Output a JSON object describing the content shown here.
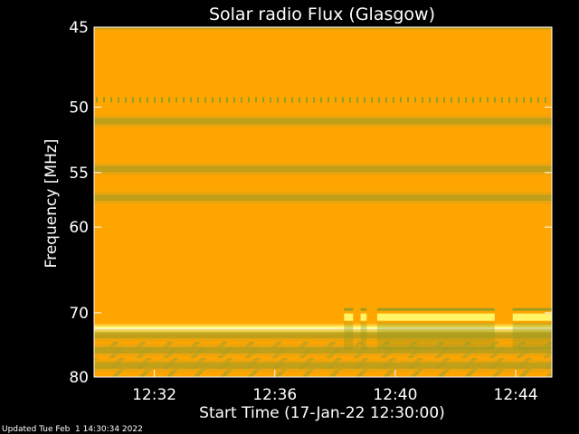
{
  "chart_data": {
    "type": "heatmap",
    "title": "Solar radio Flux (Glasgow)",
    "ylabel_text": "Frequency ",
    "ylabel_unit": "[MHz]",
    "xlabel": "Start Time (17-Jan-22 12:30:00)",
    "footer": "Updated Tue Feb  1 14:30:34 2022",
    "xlim_minutes": [
      0,
      15.2
    ],
    "ylim_mhz": [
      45,
      80
    ],
    "x_ticks": [
      {
        "label": "12:32",
        "minutes": 2
      },
      {
        "label": "12:36",
        "minutes": 6
      },
      {
        "label": "12:40",
        "minutes": 10
      },
      {
        "label": "12:44",
        "minutes": 14
      }
    ],
    "y_ticks": [
      {
        "label": "45",
        "mhz": 45
      },
      {
        "label": "50",
        "mhz": 50
      },
      {
        "label": "55",
        "mhz": 55
      },
      {
        "label": "60",
        "mhz": 60
      },
      {
        "label": "70",
        "mhz": 70
      },
      {
        "label": "80",
        "mhz": 80
      }
    ],
    "background_level": "high",
    "horizontal_bands": [
      {
        "mhz": 45,
        "kind": "dim",
        "note": "bright edge band at top"
      },
      {
        "mhz": 49.5,
        "kind": "dim",
        "note": "dashed interference"
      },
      {
        "mhz": 51,
        "kind": "dim"
      },
      {
        "mhz": 54.7,
        "kind": "dim"
      },
      {
        "mhz": 57.2,
        "kind": "dim"
      },
      {
        "mhz": 72.3,
        "kind": "bright",
        "note": "strong persistent emission line"
      },
      {
        "mhz": 73.2,
        "kind": "dim"
      },
      {
        "mhz": 75.5,
        "kind": "dim"
      },
      {
        "mhz": 78,
        "kind": "dim",
        "note": "diagonal drift pattern"
      }
    ],
    "burst_segments": [
      {
        "mhz": 70.6,
        "start_min": 8.3,
        "end_min": 8.6
      },
      {
        "mhz": 70.6,
        "start_min": 8.85,
        "end_min": 9.05
      },
      {
        "mhz": 70.6,
        "start_min": 9.4,
        "end_min": 13.3
      },
      {
        "mhz": 70.6,
        "start_min": 13.9,
        "end_min": 15.2
      }
    ],
    "colors": {
      "background": "#000000",
      "axis": "#ffffff",
      "high": "#ffa500",
      "mid": "#d9a418",
      "low": "#8f9a24",
      "bright": "#fff566"
    }
  }
}
